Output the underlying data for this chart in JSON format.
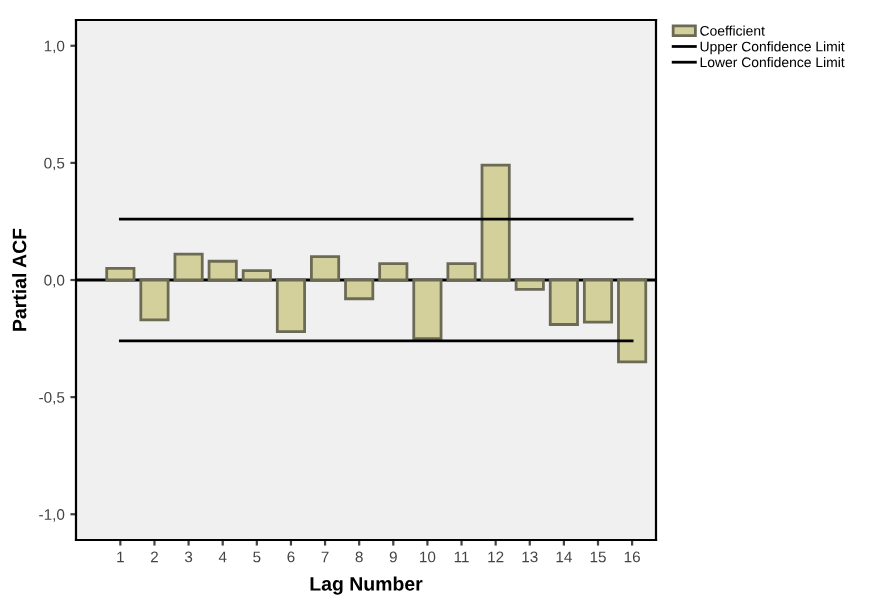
{
  "chart_data": {
    "type": "bar",
    "xlabel": "Lag Number",
    "ylabel": "Partial ACF",
    "categories": [
      "1",
      "2",
      "3",
      "4",
      "5",
      "6",
      "7",
      "8",
      "9",
      "10",
      "11",
      "12",
      "13",
      "14",
      "15",
      "16"
    ],
    "series": [
      {
        "name": "Coefficient",
        "color": "#d4d09c",
        "values": [
          0.05,
          -0.17,
          0.11,
          0.08,
          0.04,
          -0.22,
          0.1,
          -0.08,
          0.07,
          -0.25,
          0.07,
          0.49,
          -0.04,
          -0.19,
          -0.18,
          -0.35
        ]
      },
      {
        "name": "Upper Confidence Limit",
        "type": "line",
        "color": "#000000",
        "values": [
          0.26,
          0.26,
          0.26,
          0.26,
          0.26,
          0.26,
          0.26,
          0.26,
          0.26,
          0.26,
          0.26,
          0.26,
          0.26,
          0.26,
          0.26,
          0.26
        ]
      },
      {
        "name": "Lower Confidence Limit",
        "type": "line",
        "color": "#000000",
        "values": [
          -0.26,
          -0.26,
          -0.26,
          -0.26,
          -0.26,
          -0.26,
          -0.26,
          -0.26,
          -0.26,
          -0.26,
          -0.26,
          -0.26,
          -0.26,
          -0.26,
          -0.26,
          -0.26
        ]
      }
    ],
    "ylim": [
      -1.11,
      1.11
    ],
    "yticks": [
      {
        "value": -1.0,
        "label": "-1,0"
      },
      {
        "value": -0.5,
        "label": "-0,5"
      },
      {
        "value": 0.0,
        "label": "0,0"
      },
      {
        "value": 0.5,
        "label": "0,5"
      },
      {
        "value": 1.0,
        "label": "1,0"
      }
    ],
    "ref_lines": [
      {
        "axis": "y",
        "value": 0,
        "color": "#000000"
      }
    ],
    "grid": false,
    "legend": "top right",
    "marker": "none"
  }
}
